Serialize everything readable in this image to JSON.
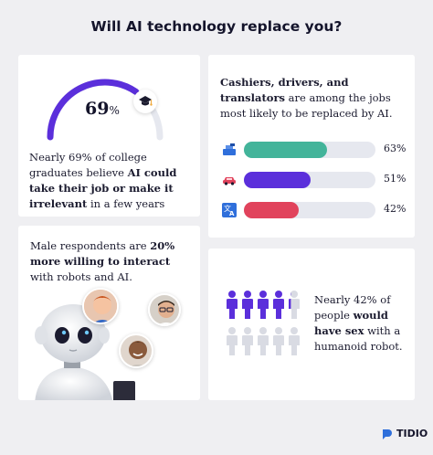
{
  "title": "Will AI technology replace you?",
  "card1": {
    "percent": "69",
    "percent_sign": "%",
    "gauge_fraction": 0.69,
    "text_pre": "Nearly 69% of college graduates believe ",
    "text_bold": "AI could take their job or make it irrelevant",
    "text_post": " in a few years"
  },
  "card2": {
    "text_bold": "Cashiers, drivers, and translators",
    "text_post": " are among the jobs most likely to be replaced by AI.",
    "bars": [
      {
        "icon": "cashier-register-icon",
        "value": "63%",
        "fraction": 0.63,
        "color": "#43b49a"
      },
      {
        "icon": "car-icon",
        "value": "51%",
        "fraction": 0.51,
        "color": "#5b2fdb"
      },
      {
        "icon": "translate-icon",
        "value": "42%",
        "fraction": 0.42,
        "color": "#e1435c"
      }
    ]
  },
  "card3": {
    "text_pre": "Male respondents are ",
    "text_bold": "20% more willing to interact",
    "text_post": " with robots and AI."
  },
  "card4": {
    "text_pre": "Nearly 42% of people ",
    "text_bold": "would have sex",
    "text_post": " with a humanoid robot.",
    "filled_fraction": 0.42
  },
  "footer": {
    "brand": "TIDIO"
  },
  "colors": {
    "accent": "#5b2fdb",
    "red": "#e1435c",
    "teal": "#43b49a",
    "icon_blue": "#2f6fdb"
  }
}
